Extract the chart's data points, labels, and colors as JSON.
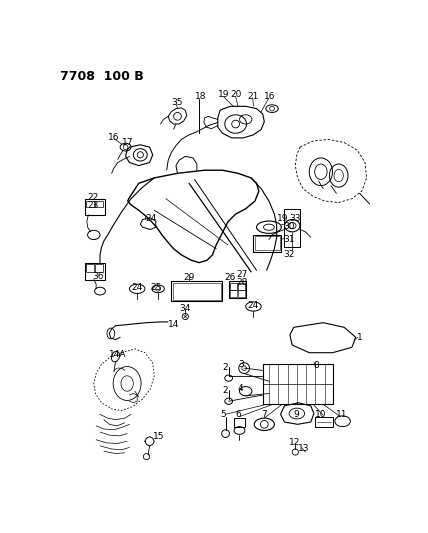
{
  "title": "7708 100 B",
  "bg": "#ffffff",
  "fig_w": 4.28,
  "fig_h": 5.33,
  "dpi": 100
}
